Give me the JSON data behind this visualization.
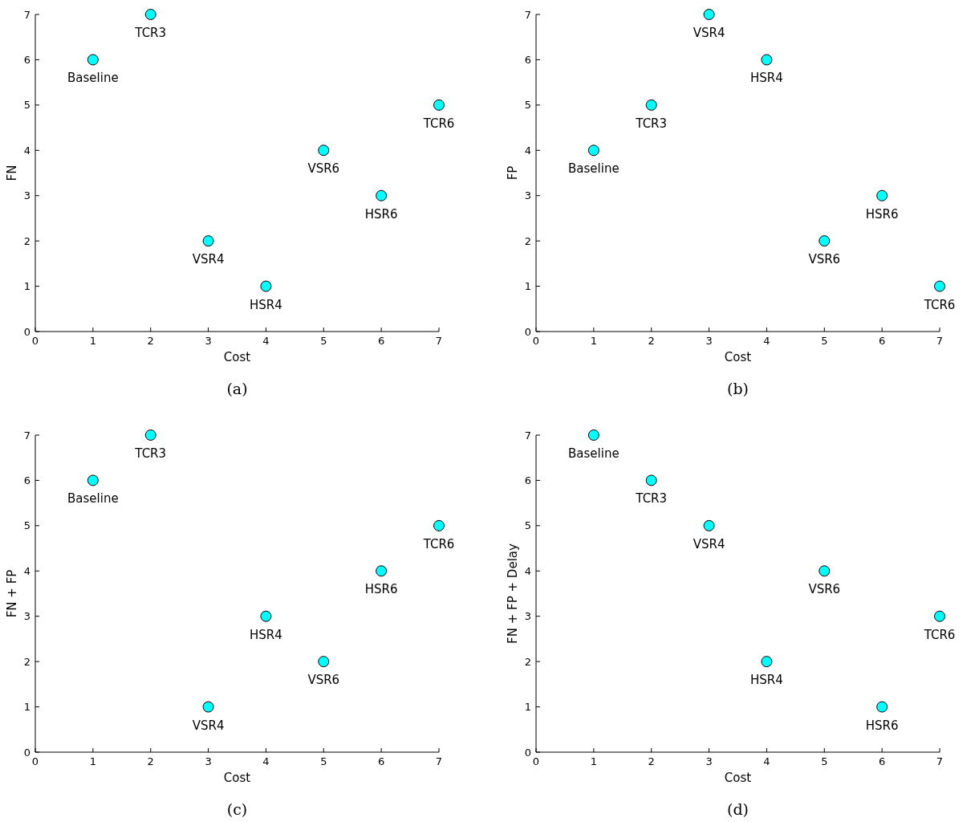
{
  "chart_data": [
    {
      "type": "scatter",
      "xlabel": "Cost",
      "ylabel": "FN",
      "xlim": [
        0,
        7
      ],
      "ylim": [
        0,
        7
      ],
      "xticks": [
        0,
        1,
        2,
        3,
        4,
        5,
        6,
        7
      ],
      "yticks": [
        0,
        1,
        2,
        3,
        4,
        5,
        6,
        7
      ],
      "marker": "circle",
      "series": [
        {
          "color": "#00ffff",
          "x": [
            1,
            2,
            3,
            4,
            5,
            6,
            7
          ],
          "values": [
            6,
            7,
            2,
            1,
            4,
            3,
            5
          ]
        }
      ],
      "annotations": [
        {
          "text": "Baseline",
          "x": 1,
          "y": 6
        },
        {
          "text": "TCR3",
          "x": 2,
          "y": 7
        },
        {
          "text": "VSR4",
          "x": 3,
          "y": 2
        },
        {
          "text": "HSR4",
          "x": 4,
          "y": 1
        },
        {
          "text": "VSR6",
          "x": 5,
          "y": 4
        },
        {
          "text": "HSR6",
          "x": 6,
          "y": 3
        },
        {
          "text": "TCR6",
          "x": 7,
          "y": 5
        },
        "(a)"
      ]
    },
    {
      "type": "scatter",
      "xlabel": "Cost",
      "ylabel": "FP",
      "xlim": [
        0,
        7
      ],
      "ylim": [
        0,
        7
      ],
      "xticks": [
        0,
        1,
        2,
        3,
        4,
        5,
        6,
        7
      ],
      "yticks": [
        0,
        1,
        2,
        3,
        4,
        5,
        6,
        7
      ],
      "marker": "circle",
      "series": [
        {
          "color": "#00ffff",
          "x": [
            1,
            2,
            3,
            4,
            5,
            6,
            7
          ],
          "values": [
            4,
            5,
            7,
            6,
            2,
            3,
            1
          ]
        }
      ],
      "annotations": [
        {
          "text": "Baseline",
          "x": 1,
          "y": 4
        },
        {
          "text": "TCR3",
          "x": 2,
          "y": 5
        },
        {
          "text": "VSR4",
          "x": 3,
          "y": 7
        },
        {
          "text": "HSR4",
          "x": 4,
          "y": 6
        },
        {
          "text": "VSR6",
          "x": 5,
          "y": 2
        },
        {
          "text": "HSR6",
          "x": 6,
          "y": 3
        },
        {
          "text": "TCR6",
          "x": 7,
          "y": 1
        },
        "(b)"
      ]
    },
    {
      "type": "scatter",
      "xlabel": "Cost",
      "ylabel": "FN + FP",
      "xlim": [
        0,
        7
      ],
      "ylim": [
        0,
        7
      ],
      "xticks": [
        0,
        1,
        2,
        3,
        4,
        5,
        6,
        7
      ],
      "yticks": [
        0,
        1,
        2,
        3,
        4,
        5,
        6,
        7
      ],
      "marker": "circle",
      "series": [
        {
          "color": "#00ffff",
          "x": [
            1,
            2,
            3,
            4,
            5,
            6,
            7
          ],
          "values": [
            6,
            7,
            1,
            3,
            2,
            4,
            5
          ]
        }
      ],
      "annotations": [
        {
          "text": "Baseline",
          "x": 1,
          "y": 6
        },
        {
          "text": "TCR3",
          "x": 2,
          "y": 7
        },
        {
          "text": "VSR4",
          "x": 3,
          "y": 1
        },
        {
          "text": "HSR4",
          "x": 4,
          "y": 3
        },
        {
          "text": "VSR6",
          "x": 5,
          "y": 2
        },
        {
          "text": "HSR6",
          "x": 6,
          "y": 4
        },
        {
          "text": "TCR6",
          "x": 7,
          "y": 5
        },
        "(c)"
      ]
    },
    {
      "type": "scatter",
      "xlabel": "Cost",
      "ylabel": "FN + FP + Delay",
      "xlim": [
        0,
        7
      ],
      "ylim": [
        0,
        7
      ],
      "xticks": [
        0,
        1,
        2,
        3,
        4,
        5,
        6,
        7
      ],
      "yticks": [
        0,
        1,
        2,
        3,
        4,
        5,
        6,
        7
      ],
      "marker": "circle",
      "series": [
        {
          "color": "#00ffff",
          "x": [
            1,
            2,
            3,
            4,
            5,
            6,
            7
          ],
          "values": [
            7,
            6,
            5,
            2,
            4,
            1,
            3
          ]
        }
      ],
      "annotations": [
        {
          "text": "Baseline",
          "x": 1,
          "y": 7
        },
        {
          "text": "TCR3",
          "x": 2,
          "y": 6
        },
        {
          "text": "VSR4",
          "x": 3,
          "y": 5
        },
        {
          "text": "HSR4",
          "x": 4,
          "y": 2
        },
        {
          "text": "VSR6",
          "x": 5,
          "y": 4
        },
        {
          "text": "HSR6",
          "x": 6,
          "y": 1
        },
        {
          "text": "TCR6",
          "x": 7,
          "y": 3
        },
        "(d)"
      ]
    }
  ]
}
